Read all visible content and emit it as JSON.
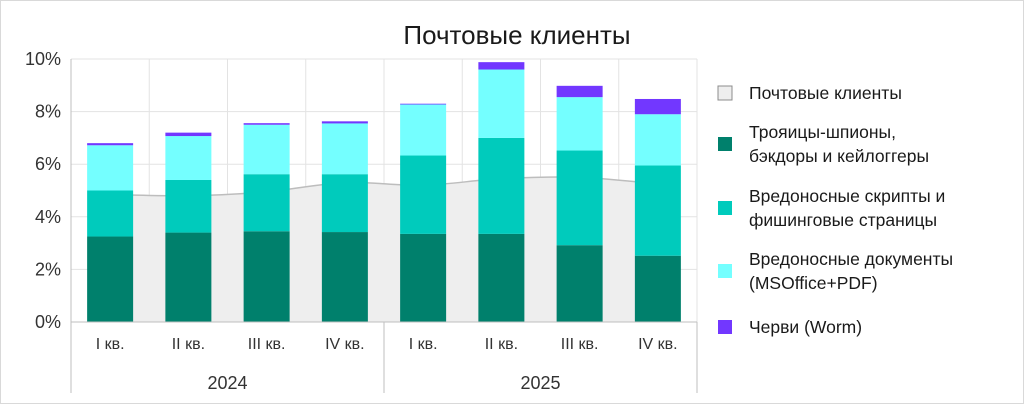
{
  "chart_data": {
    "type": "bar",
    "stacked": true,
    "title": "Почтовые клиенты",
    "categories": [
      "I кв.",
      "II кв.",
      "III кв.",
      "IV кв.",
      "I кв.",
      "II кв.",
      "III кв.",
      "IV кв."
    ],
    "groups": [
      {
        "label": "2024",
        "span": 4
      },
      {
        "label": "2025",
        "span": 4
      }
    ],
    "ylim": [
      0,
      10
    ],
    "yticks": [
      "0%",
      "2%",
      "4%",
      "6%",
      "8%",
      "10%"
    ],
    "grid": true,
    "legend_position": "right",
    "area": {
      "name": "Почтовые клиенты",
      "color": "#eeeeee",
      "values": [
        4.85,
        4.8,
        4.95,
        5.3,
        5.2,
        5.45,
        5.5,
        5.25
      ]
    },
    "series": [
      {
        "name": "Трояицы-шпионы, бэкдоры и кейлоггеры",
        "color": "#00806c",
        "values": [
          3.25,
          3.4,
          3.45,
          3.42,
          3.35,
          3.35,
          2.92,
          2.52
        ]
      },
      {
        "name": "Вредоносные скрипты и фишинговые страницы",
        "color": "#00cbbc",
        "values": [
          1.75,
          2.0,
          2.17,
          2.2,
          2.98,
          3.65,
          3.6,
          3.43
        ]
      },
      {
        "name": "Вредоносные документы (MSOffice+PDF)",
        "color": "#74ffff",
        "values": [
          1.72,
          1.67,
          1.88,
          1.93,
          1.94,
          2.6,
          2.03,
          1.95
        ]
      },
      {
        "name": "Черви (Worm)",
        "color": "#7237ff",
        "values": [
          0.08,
          0.13,
          0.06,
          0.08,
          0.03,
          0.28,
          0.43,
          0.58
        ]
      }
    ],
    "legend": [
      {
        "lines": [
          "Почтовые клиенты"
        ],
        "color": "#eeeeee",
        "outline": true
      },
      {
        "lines": [
          "Трояицы-шпионы,",
          "бэкдоры и кейлоггеры"
        ],
        "color": "#00806c"
      },
      {
        "lines": [
          "Вредоносные скрипты и",
          "фишинговые страницы"
        ],
        "color": "#00cbbc"
      },
      {
        "lines": [
          "Вредоносные документы",
          "(MSOffice+PDF)"
        ],
        "color": "#74ffff"
      },
      {
        "lines": [
          "Черви (Worm)"
        ],
        "color": "#7237ff"
      }
    ]
  }
}
